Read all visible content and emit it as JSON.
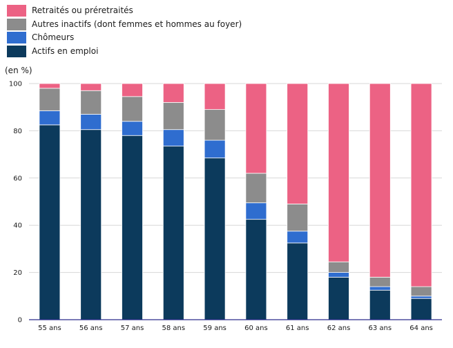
{
  "chart_data": {
    "type": "bar",
    "stacked": true,
    "unit_label": "(en %)",
    "categories": [
      "55 ans",
      "56 ans",
      "57 ans",
      "58 ans",
      "59 ans",
      "60 ans",
      "61 ans",
      "62 ans",
      "63 ans",
      "64 ans"
    ],
    "ylim": [
      0,
      100
    ],
    "yticks": [
      0,
      20,
      40,
      60,
      80,
      100
    ],
    "grid": true,
    "legend_position": "top-left",
    "series": [
      {
        "name": "Actifs en emploi",
        "color": "#0c3a5c",
        "values": [
          82.5,
          80.5,
          78,
          73.5,
          68.5,
          42.5,
          32.5,
          18,
          12.5,
          9
        ]
      },
      {
        "name": "Chômeurs",
        "color": "#2f6dcf",
        "values": [
          6,
          6.5,
          6,
          7,
          7.5,
          7,
          5,
          2,
          1.5,
          1
        ]
      },
      {
        "name": "Autres inactifs (dont femmes et hommes au foyer)",
        "color": "#8c8c8c",
        "values": [
          9.5,
          10,
          10.5,
          11.5,
          13,
          12.5,
          11.5,
          4.5,
          4,
          4
        ]
      },
      {
        "name": "Retraités ou préretraités",
        "color": "#ec6284",
        "values": [
          2,
          3,
          5.5,
          8,
          11,
          38,
          51,
          75.5,
          82,
          86
        ]
      }
    ]
  }
}
